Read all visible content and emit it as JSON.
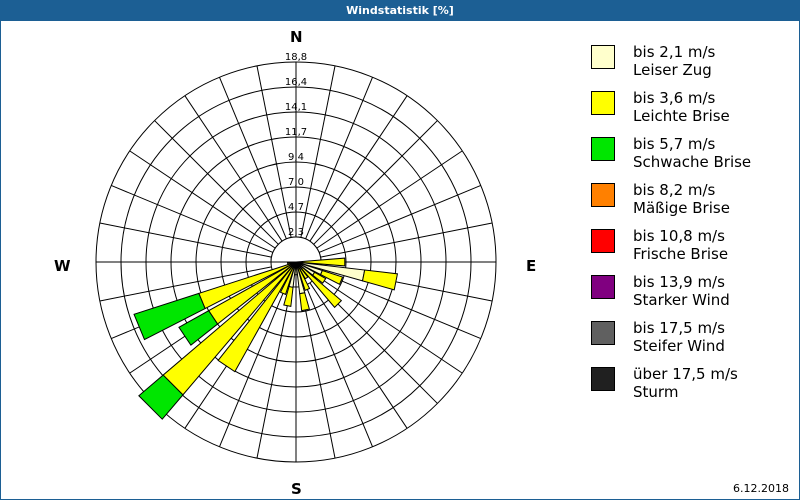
{
  "window": {
    "title": "Windstatistik [%]"
  },
  "footer": {
    "date": "6.12.2018"
  },
  "compass": {
    "n": "N",
    "e": "E",
    "s": "S",
    "w": "W"
  },
  "legend": [
    {
      "range": "bis 2,1 m/s",
      "name": "Leiser Zug",
      "color": "#ffffcc"
    },
    {
      "range": "bis 3,6 m/s",
      "name": "Leichte Brise",
      "color": "#ffff00"
    },
    {
      "range": "bis 5,7 m/s",
      "name": "Schwache Brise",
      "color": "#00e600"
    },
    {
      "range": "bis 8,2 m/s",
      "name": "Mäßige Brise",
      "color": "#ff8000"
    },
    {
      "range": "bis 10,8 m/s",
      "name": "Frische Brise",
      "color": "#ff0000"
    },
    {
      "range": "bis 13,9 m/s",
      "name": "Starker Wind",
      "color": "#800080"
    },
    {
      "range": "bis 17,5 m/s",
      "name": "Steifer Wind",
      "color": "#606060"
    },
    {
      "range": "über 17,5 m/s",
      "name": "Sturm",
      "color": "#202020"
    }
  ],
  "chart_data": {
    "type": "wind-rose",
    "title": "Windstatistik [%]",
    "radial_ticks": [
      "2,3",
      "4,7",
      "7,0",
      "9,4",
      "11,7",
      "14,1",
      "16,4",
      "18,8"
    ],
    "radial_unit": "%",
    "directions": 32,
    "series_names": [
      "bis 2,1 m/s",
      "bis 3,6 m/s",
      "bis 5,7 m/s"
    ],
    "sectors": [
      {
        "angle": 90.0,
        "cumulative": [
          0.6,
          4.6,
          4.6
        ]
      },
      {
        "angle": 101.25,
        "cumulative": [
          6.5,
          9.6,
          9.6
        ]
      },
      {
        "angle": 112.5,
        "cumulative": [
          2.6,
          4.6,
          4.6
        ]
      },
      {
        "angle": 123.75,
        "cumulative": [
          2.0,
          3.2,
          3.2
        ]
      },
      {
        "angle": 135.0,
        "cumulative": [
          0.8,
          5.6,
          5.6
        ]
      },
      {
        "angle": 146.25,
        "cumulative": [
          0.8,
          1.8,
          1.8
        ]
      },
      {
        "angle": 157.5,
        "cumulative": [
          0.6,
          2.8,
          2.8
        ]
      },
      {
        "angle": 168.75,
        "cumulative": [
          3.0,
          4.6,
          4.6
        ]
      },
      {
        "angle": 180.0,
        "cumulative": [
          1.2,
          1.2,
          1.2
        ]
      },
      {
        "angle": 191.25,
        "cumulative": [
          2.4,
          4.2,
          4.2
        ]
      },
      {
        "angle": 202.5,
        "cumulative": [
          0.6,
          3.2,
          3.2
        ]
      },
      {
        "angle": 213.75,
        "cumulative": [
          0.4,
          11.8,
          11.8
        ]
      },
      {
        "angle": 225.0,
        "cumulative": [
          0.5,
          16.4,
          19.4
        ]
      },
      {
        "angle": 236.25,
        "cumulative": [
          0.5,
          9.4,
          12.6
        ]
      },
      {
        "angle": 247.5,
        "cumulative": [
          0.5,
          9.6,
          16.0
        ]
      },
      {
        "angle": 258.75,
        "cumulative": [
          0.3,
          0.8,
          0.8
        ]
      }
    ]
  }
}
